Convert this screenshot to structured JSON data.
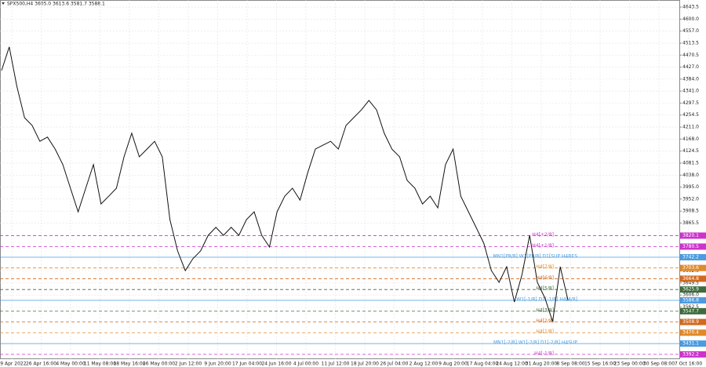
{
  "chart_data": {
    "type": "line",
    "title": "SPX500,H4  3605.0 3613.6 3581.7 3588.1",
    "time_labels": [
      "19 Apr 2022",
      "26 Apr 16:00",
      "4 May 00:00",
      "11 May 08:00",
      "18 May 16:00",
      "26 May 00:00",
      "2 Jun 12:00",
      "9 Jun 20:00",
      "17 Jun 04:00",
      "24 Jun 16:00",
      "4 Jul 00:00",
      "11 Jul 12:00",
      "18 Jul 20:00",
      "26 Jul 04:00",
      "2 Aug 12:00",
      "9 Aug 20:00",
      "17 Aug 04:00",
      "24 Aug 12:00",
      "31 Aug 20:00",
      "8 Sep 08:00",
      "15 Sep 16:00",
      "23 Sep 00:00",
      "30 Sep 08:00",
      "7 Oct 16:00"
    ],
    "series": [
      {
        "name": "SPX500",
        "color": "#111111",
        "values": [
          4415,
          4500,
          4358,
          4245,
          4217,
          4160,
          4175,
          4132,
          4076,
          3991,
          3906,
          3991,
          4076,
          3934,
          3962,
          3991,
          4104,
          4189,
          4104,
          4132,
          4160,
          4104,
          3878,
          3765,
          3694,
          3737,
          3765,
          3821,
          3850,
          3821,
          3850,
          3821,
          3878,
          3906,
          3821,
          3779,
          3906,
          3962,
          3991,
          3948,
          4047,
          4132,
          4146,
          4160,
          4132,
          4217,
          4245,
          4273,
          4307,
          4273,
          4189,
          4132,
          4104,
          4019,
          3991,
          3934,
          3962,
          3920,
          4076,
          4132,
          3962,
          3906,
          3850,
          3793,
          3694,
          3652,
          3708,
          3581,
          3680,
          3821,
          3652,
          3595,
          3510,
          3708,
          3588
        ]
      }
    ],
    "ylim": [
      3375,
      4669
    ],
    "yticks": [
      4643.5,
      {
        "value": 4600,
        "label": "4600.0"
      },
      {
        "value": 4557,
        "label": "4557.0"
      },
      4513.5,
      4470.5,
      {
        "value": 4427,
        "label": "4427.0"
      },
      {
        "value": 4384,
        "label": "4384.0"
      },
      {
        "value": 4341,
        "label": "4341.0"
      },
      4297.5,
      4254.5,
      {
        "value": 4211,
        "label": "4211.0"
      },
      {
        "value": 4168,
        "label": "4168.0"
      },
      4124.5,
      4081.5,
      {
        "value": 4038,
        "label": "4038.0"
      },
      {
        "value": 3995,
        "label": "3995.0"
      },
      {
        "value": 3952,
        "label": "3952.0"
      },
      3908.5,
      3865.5,
      3692.5,
      3649.5,
      {
        "value": 3606,
        "label": "3606.0"
      },
      3562.5
    ],
    "grid": true,
    "levels": [
      {
        "label": "H4[+2/8]",
        "value": 3820.1,
        "color": "#cc33cc",
        "dashed": true
      },
      {
        "label": "H4[+1/8]",
        "value": 3780.5,
        "color": "#cc33cc",
        "dashed": true
      },
      {
        "label": "MN1[P8/8] W1[P8/8] D1[SUP H4RES",
        "value": 3742.2,
        "color": "#4a9be0",
        "dashed": false
      },
      {
        "label": "H4[7/8]",
        "value": 3703.6,
        "color": "#e08a2a",
        "dashed": true
      },
      {
        "label": "H4[6/8]",
        "value": 3664.8,
        "color": "#d2691e",
        "dashed": true
      },
      {
        "label": "H4[5/8]",
        "value": 3625.9,
        "color": "#3d6b3d",
        "dashed": true
      },
      {
        "label": "W1[-1/8] D1[-1/8] H4[4/8]",
        "value": 3586.8,
        "color": "#4a9be0",
        "dashed": false
      },
      {
        "label": "H4[3/8]",
        "value": 3547.7,
        "color": "#3d6b3d",
        "dashed": true
      },
      {
        "label": "H4[2/8]",
        "value": 3508.9,
        "color": "#d2691e",
        "dashed": true
      },
      {
        "label": "H4[1/8]",
        "value": 3470.4,
        "color": "#e08a2a",
        "dashed": true
      },
      {
        "label": "MN1[-2/8] W1[-2/8] D1[-2/8] H4SUP",
        "value": 3431.1,
        "color": "#4a9be0",
        "dashed": false
      },
      {
        "label": "H4[-1/8]",
        "value": 3392.2,
        "color": "#cc33cc",
        "dashed": true
      }
    ]
  }
}
